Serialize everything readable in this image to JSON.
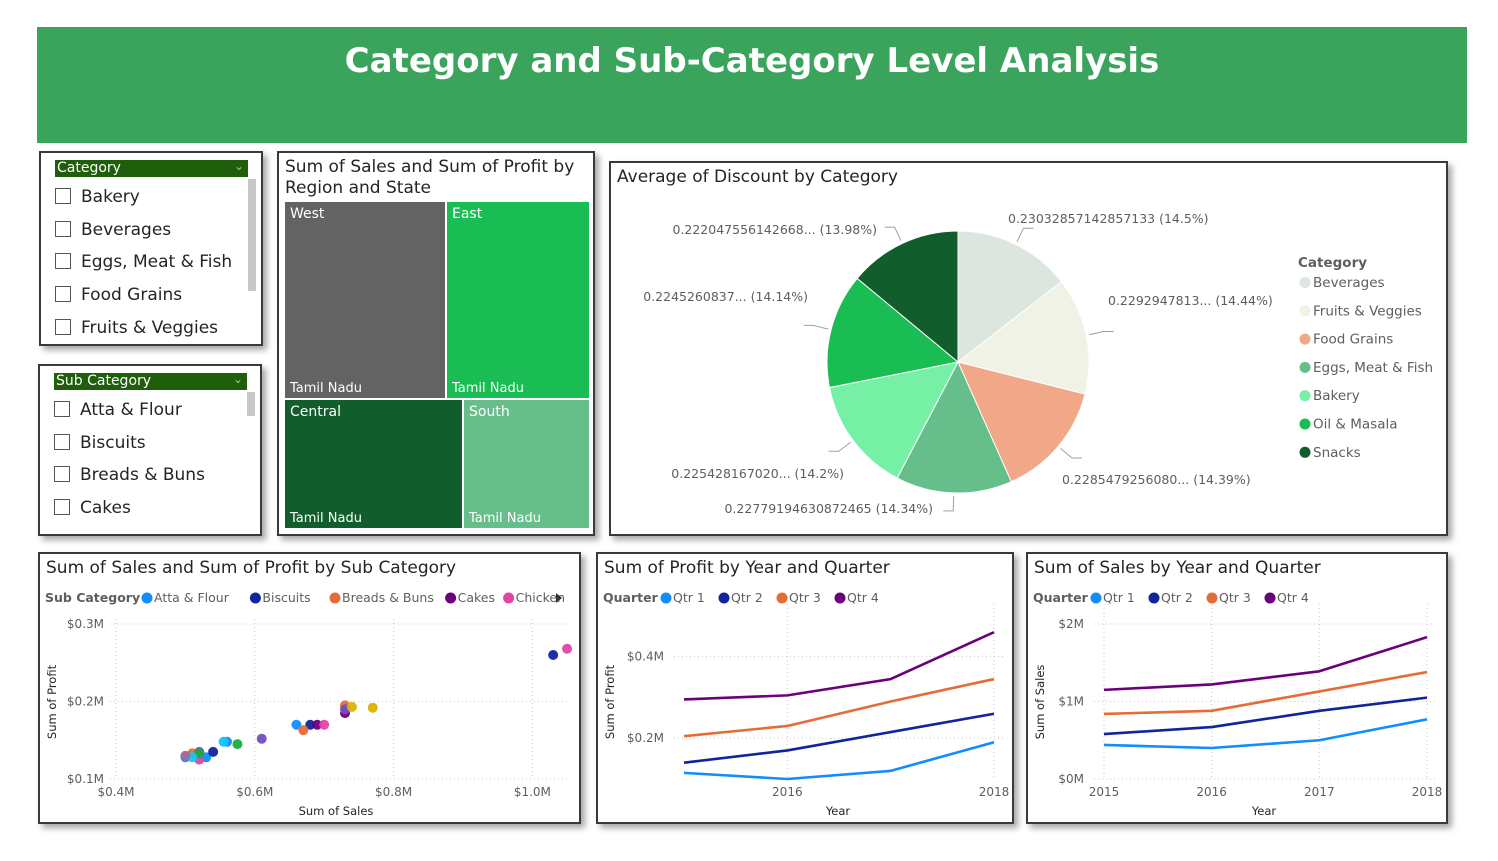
{
  "header": {
    "title": "Category and Sub-Category Level Analysis"
  },
  "colors": {
    "banner": "#3aa35c",
    "slicer_header": "#1f5e0b"
  },
  "slicer_category": {
    "title": "Category",
    "items": [
      "Bakery",
      "Beverages",
      "Eggs, Meat & Fish",
      "Food Grains",
      "Fruits & Veggies"
    ]
  },
  "slicer_subcategory": {
    "title": "Sub Category",
    "items": [
      "Atta & Flour",
      "Biscuits",
      "Breads & Buns",
      "Cakes"
    ]
  },
  "treemap": {
    "title": "Sum of Sales and Sum of Profit by Region and State",
    "tiles": [
      {
        "region": "West",
        "state": "Tamil Nadu",
        "color": "#636363"
      },
      {
        "region": "East",
        "state": "Tamil Nadu",
        "color": "#1abd53"
      },
      {
        "region": "Central",
        "state": "Tamil Nadu",
        "color": "#115e2c"
      },
      {
        "region": "South",
        "state": "Tamil Nadu",
        "color": "#66bf8b"
      }
    ]
  },
  "pie": {
    "title": "Average of Discount by Category",
    "legend_title": "Category",
    "legend": [
      {
        "name": "Beverages",
        "color": "#dce6de"
      },
      {
        "name": "Fruits & Veggies",
        "color": "#f0f2e6"
      },
      {
        "name": "Food Grains",
        "color": "#f0a888"
      },
      {
        "name": "Eggs, Meat & Fish",
        "color": "#66bf8b"
      },
      {
        "name": "Bakery",
        "color": "#76f0a5"
      },
      {
        "name": "Oil & Masala",
        "color": "#1abd53"
      },
      {
        "name": "Snacks",
        "color": "#115e2c"
      }
    ],
    "labels": [
      "0.23032857142857133 (14.5%)",
      "0.2292947813... (14.44%)",
      "0.2285479256080... (14.39%)",
      "0.22779194630872465 (14.34%)",
      "0.225428167020... (14.2%)",
      "0.2245260837... (14.14%)",
      "0.222047556142668... (13.98%)"
    ]
  },
  "scatter": {
    "title": "Sum of Sales and Sum of Profit by Sub Category",
    "legend_title": "Sub Category",
    "xlabel": "Sum of Sales",
    "ylabel": "Sum of Profit",
    "xticks": [
      "$0.4M",
      "$0.6M",
      "$0.8M",
      "$1.0M"
    ],
    "yticks": [
      "$0.1M",
      "$0.2M",
      "$0.3M"
    ]
  },
  "profit_lines": {
    "title": "Sum of Profit by Year and Quarter",
    "legend_title": "Quarter",
    "xlabel": "Year",
    "ylabel": "Sum of Profit",
    "xticks": [
      "2016",
      "2018"
    ],
    "yticks": [
      "$0.2M",
      "$0.4M"
    ]
  },
  "sales_lines": {
    "title": "Sum of Sales by Year and Quarter",
    "legend_title": "Quarter",
    "xlabel": "Year",
    "ylabel": "Sum of Sales",
    "xticks": [
      "2015",
      "2016",
      "2017",
      "2018"
    ],
    "yticks": [
      "$0M",
      "$1M",
      "$2M"
    ]
  },
  "chart_data": [
    {
      "type": "heatmap",
      "title": "Sum of Sales and Sum of Profit by Region and State",
      "categories": [
        "West",
        "East",
        "Central",
        "South"
      ],
      "series": [
        {
          "values": [
            0.32,
            0.29,
            0.23,
            0.16
          ]
        }
      ]
    },
    {
      "type": "pie",
      "title": "Average of Discount by Category",
      "categories": [
        "Beverages",
        "Fruits & Veggies",
        "Food Grains",
        "Eggs, Meat & Fish",
        "Bakery",
        "Oil & Masala",
        "Snacks"
      ],
      "values": [
        0.23032857142857133,
        0.2292947813,
        0.228547925608,
        0.22779194630872465,
        0.22542816702,
        0.2245260837,
        0.222047556142668
      ],
      "percentages": [
        14.5,
        14.44,
        14.39,
        14.34,
        14.2,
        14.14,
        13.98
      ]
    },
    {
      "type": "scatter",
      "title": "Sum of Sales and Sum of Profit by Sub Category",
      "xlabel": "Sum of Sales",
      "ylabel": "Sum of Profit",
      "xlim": [
        0.4,
        1.1
      ],
      "ylim": [
        0.1,
        0.3
      ],
      "series": [
        {
          "name": "Atta & Flour",
          "color": "#118dff",
          "points": [
            [
              0.5,
              0.128
            ],
            [
              0.53,
              0.128
            ],
            [
              0.56,
              0.148
            ],
            [
              0.66,
              0.17
            ]
          ]
        },
        {
          "name": "Biscuits",
          "color": "#12239e",
          "points": [
            [
              0.54,
              0.135
            ],
            [
              0.68,
              0.17
            ],
            [
              1.03,
              0.26
            ]
          ]
        },
        {
          "name": "Breads & Buns",
          "color": "#e66c37",
          "points": [
            [
              0.51,
              0.133
            ],
            [
              0.67,
              0.163
            ],
            [
              0.73,
              0.195
            ]
          ]
        },
        {
          "name": "Cakes",
          "color": "#6b007b",
          "points": [
            [
              0.69,
              0.17
            ],
            [
              0.73,
              0.185
            ]
          ]
        },
        {
          "name": "Chicken",
          "color": "#e044a7",
          "points": [
            [
              0.52,
              0.125
            ],
            [
              0.7,
              0.17
            ],
            [
              1.05,
              0.268
            ]
          ]
        },
        {
          "color": "#744ec2",
          "points": [
            [
              0.61,
              0.152
            ],
            [
              0.52,
              0.135
            ],
            [
              0.73,
              0.19
            ]
          ]
        },
        {
          "color": "#d9b300",
          "points": [
            [
              0.74,
              0.193
            ],
            [
              0.77,
              0.192
            ]
          ]
        },
        {
          "color": "#1aab40",
          "points": [
            [
              0.52,
              0.133
            ],
            [
              0.575,
              0.145
            ]
          ]
        },
        {
          "color": "#15c6f4",
          "points": [
            [
              0.555,
              0.148
            ],
            [
              0.51,
              0.128
            ]
          ]
        },
        {
          "color": "#a66999",
          "points": [
            [
              0.5,
              0.13
            ]
          ]
        }
      ]
    },
    {
      "type": "line",
      "title": "Sum of Profit by Year and Quarter",
      "xlabel": "Year",
      "ylabel": "Sum of Profit",
      "x": [
        2015,
        2016,
        2017,
        2018
      ],
      "ylim": [
        0.1,
        0.48
      ],
      "series": [
        {
          "name": "Qtr 1",
          "color": "#118dff",
          "values": [
            0.115,
            0.1,
            0.12,
            0.19
          ]
        },
        {
          "name": "Qtr 2",
          "color": "#12239e",
          "values": [
            0.14,
            0.17,
            0.215,
            0.26
          ]
        },
        {
          "name": "Qtr 3",
          "color": "#e66c37",
          "values": [
            0.205,
            0.23,
            0.29,
            0.345
          ]
        },
        {
          "name": "Qtr 4",
          "color": "#6b007b",
          "values": [
            0.295,
            0.305,
            0.345,
            0.46
          ]
        }
      ]
    },
    {
      "type": "line",
      "title": "Sum of Sales by Year and Quarter",
      "xlabel": "Year",
      "ylabel": "Sum of Sales",
      "x": [
        2015,
        2016,
        2017,
        2018
      ],
      "ylim": [
        0,
        2
      ],
      "series": [
        {
          "name": "Qtr 1",
          "color": "#118dff",
          "values": [
            0.44,
            0.4,
            0.5,
            0.77
          ]
        },
        {
          "name": "Qtr 2",
          "color": "#12239e",
          "values": [
            0.58,
            0.67,
            0.88,
            1.05
          ]
        },
        {
          "name": "Qtr 3",
          "color": "#e66c37",
          "values": [
            0.84,
            0.88,
            1.13,
            1.38
          ]
        },
        {
          "name": "Qtr 4",
          "color": "#6b007b",
          "values": [
            1.15,
            1.22,
            1.39,
            1.83
          ]
        }
      ]
    }
  ]
}
